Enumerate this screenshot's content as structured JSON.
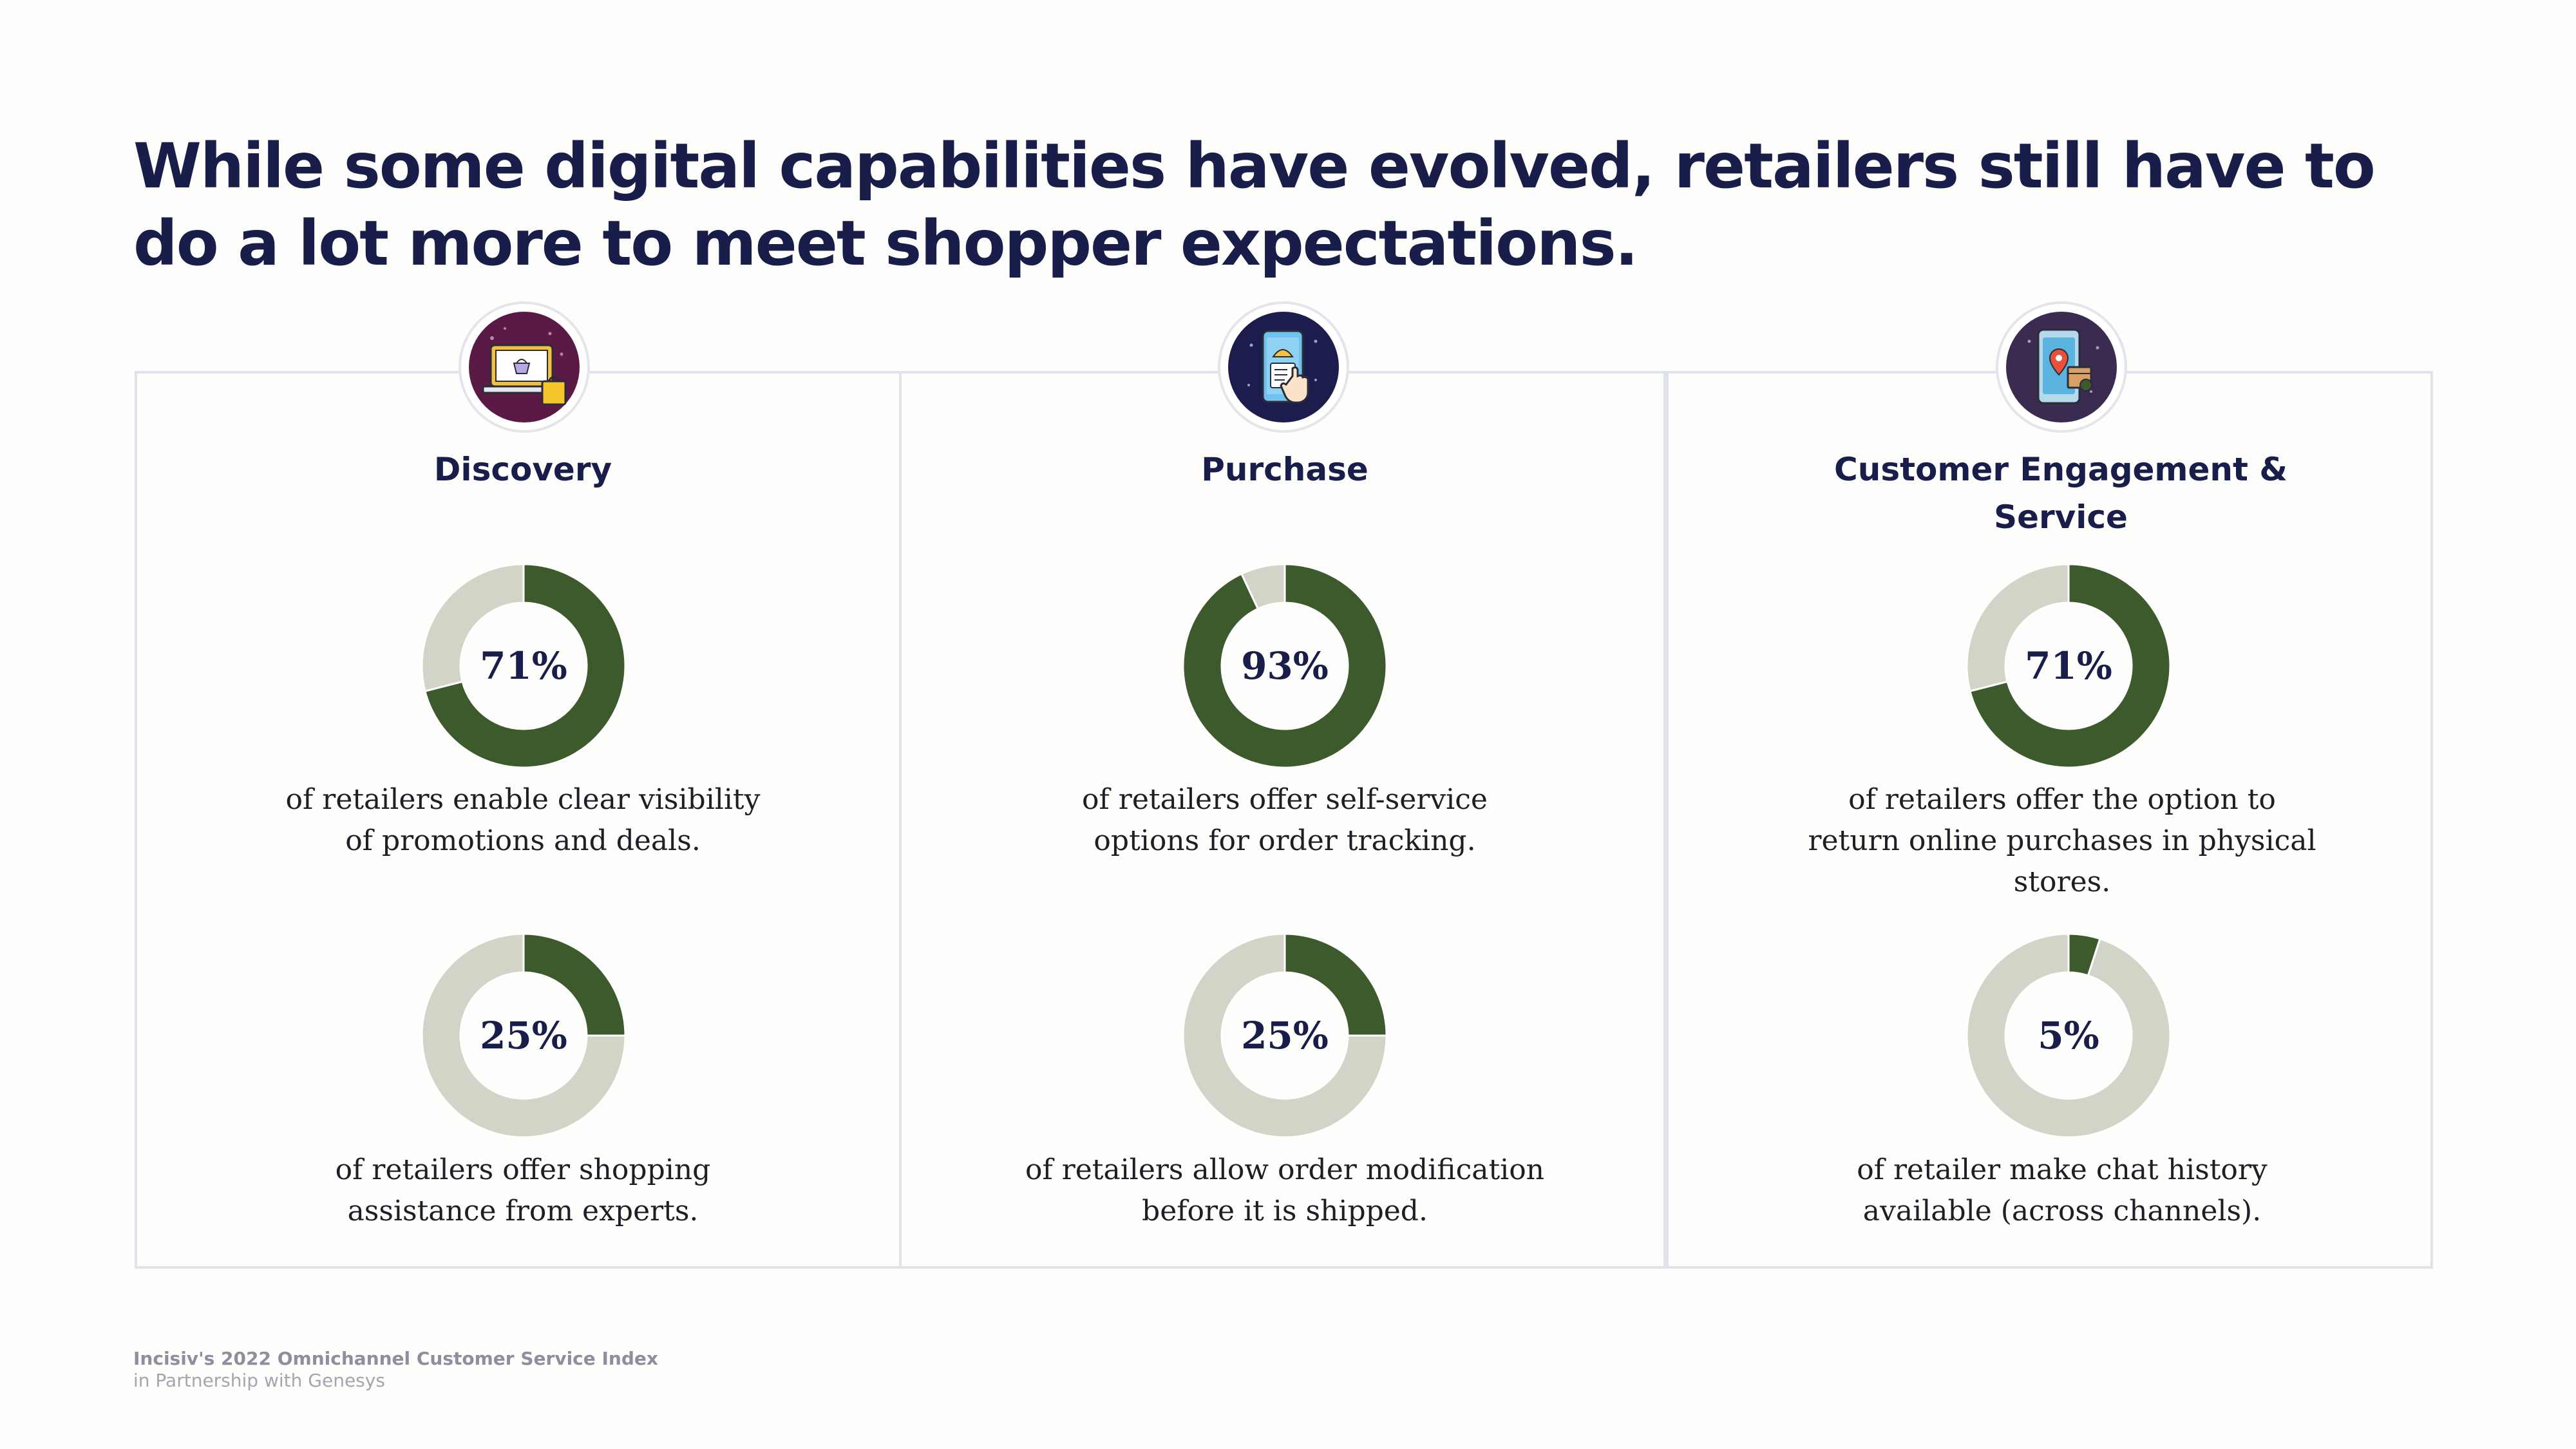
{
  "headline": "While some digital capabilities have evolved, retailers still have to do a lot more to meet shopper expectations.",
  "colors": {
    "filled": "#3c5a2b",
    "remaining": "#d2d4c7",
    "title": "#191d4a"
  },
  "columns": [
    {
      "title": "Discovery",
      "icon": "laptop-shopping-basket-icon"
    },
    {
      "title": "Purchase",
      "icon": "mobile-phone-tap-icon"
    },
    {
      "title": "Customer Engagement & Service",
      "icon": "mobile-location-package-icon"
    }
  ],
  "chart_data": [
    {
      "type": "pie",
      "variant": "donut",
      "column": "Discovery",
      "value": 71,
      "label": "71%",
      "description": "of retailers enable clear visibility of promotions and deals."
    },
    {
      "type": "pie",
      "variant": "donut",
      "column": "Discovery",
      "value": 25,
      "label": "25%",
      "description": "of retailers offer shopping assistance from experts."
    },
    {
      "type": "pie",
      "variant": "donut",
      "column": "Purchase",
      "value": 93,
      "label": "93%",
      "description": "of retailers offer self-service options for order tracking."
    },
    {
      "type": "pie",
      "variant": "donut",
      "column": "Purchase",
      "value": 25,
      "label": "25%",
      "description": "of retailers allow order modification before it is shipped."
    },
    {
      "type": "pie",
      "variant": "donut",
      "column": "Customer Engagement & Service",
      "value": 71,
      "label": "71%",
      "description": "of retailers offer the option to return online purchases in physical stores."
    },
    {
      "type": "pie",
      "variant": "donut",
      "column": "Customer Engagement & Service",
      "value": 5,
      "label": "5%",
      "description": "of retailer make chat history available (across channels)."
    }
  ],
  "footer": {
    "source": "Incisiv's 2022 Omnichannel Customer Service  Index",
    "partner": "in Partnership with Genesys"
  }
}
